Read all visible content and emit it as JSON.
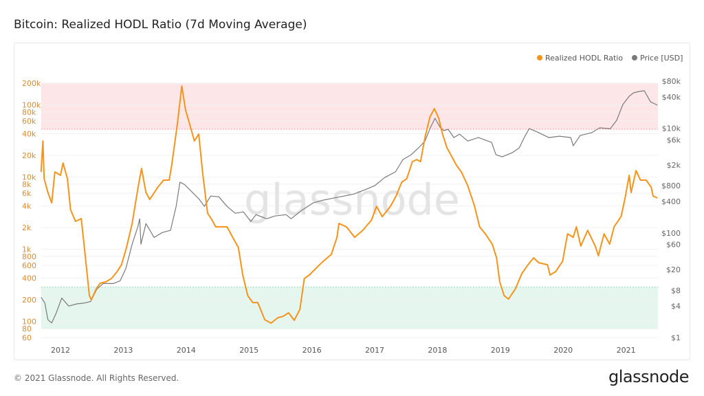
{
  "title": "Bitcoin: Realized HODL Ratio (7d Moving Average)",
  "footer": "© 2021 Glassnode. All Rights Reserved.",
  "brand": "glassnode",
  "watermark": "glassnode",
  "chart_data": {
    "type": "line",
    "title": "Bitcoin: Realized HODL Ratio (7d Moving Average)",
    "legend_position": "top-right",
    "grid": true,
    "x_ticks": [
      "2012",
      "2013",
      "2014",
      "2015",
      "2016",
      "2017",
      "2018",
      "2019",
      "2020",
      "2021"
    ],
    "xlim": [
      2011.69,
      2021.5
    ],
    "y_left": {
      "scale": "log",
      "ylim": [
        60,
        200000
      ],
      "color": "#d98c3a",
      "ticks": [
        [
          200000,
          "200k"
        ],
        [
          100000,
          "100k"
        ],
        [
          80000,
          "80k"
        ],
        [
          60000,
          "60k"
        ],
        [
          40000,
          "40k"
        ],
        [
          20000,
          "20k"
        ],
        [
          10000,
          "10k"
        ],
        [
          8000,
          "8k"
        ],
        [
          6000,
          "6k"
        ],
        [
          4000,
          "4k"
        ],
        [
          2000,
          "2k"
        ],
        [
          1000,
          "1k"
        ],
        [
          800,
          "800"
        ],
        [
          600,
          "600"
        ],
        [
          400,
          "400"
        ],
        [
          200,
          "200"
        ],
        [
          100,
          "100"
        ],
        [
          80,
          "80"
        ],
        [
          60,
          "60"
        ]
      ]
    },
    "y_right": {
      "scale": "log",
      "ylim": [
        1,
        80000
      ],
      "color": "#666666",
      "ticks": [
        [
          80000,
          "$80k"
        ],
        [
          40000,
          "$40k"
        ],
        [
          10000,
          "$10k"
        ],
        [
          6000,
          "$6k"
        ],
        [
          2000,
          "$2k"
        ],
        [
          800,
          "$800"
        ],
        [
          400,
          "$400"
        ],
        [
          100,
          "$100"
        ],
        [
          60,
          "$60"
        ],
        [
          20,
          "$20"
        ],
        [
          8,
          "$8"
        ],
        [
          4,
          "$4"
        ],
        [
          1,
          "$1"
        ]
      ]
    },
    "bands": [
      {
        "zone": "upper",
        "range": [
          46000,
          200000
        ],
        "color": "#fde6e7",
        "line": "#f08a8a"
      },
      {
        "zone": "lower",
        "range": [
          80,
          300
        ],
        "color": "#e5f6ee",
        "line": "#7fd1a8"
      }
    ],
    "series": [
      {
        "name": "Realized HODL Ratio",
        "axis": "left",
        "color": "#f7931a",
        "points": [
          [
            2011.69,
            11800
          ],
          [
            2011.72,
            31700
          ],
          [
            2011.74,
            9500
          ],
          [
            2011.8,
            6120
          ],
          [
            2011.86,
            4400
          ],
          [
            2011.91,
            11800
          ],
          [
            2012.0,
            10600
          ],
          [
            2012.04,
            15700
          ],
          [
            2012.11,
            9500
          ],
          [
            2012.16,
            3540
          ],
          [
            2012.24,
            2440
          ],
          [
            2012.33,
            2660
          ],
          [
            2012.38,
            1060
          ],
          [
            2012.46,
            228
          ],
          [
            2012.49,
            200
          ],
          [
            2012.57,
            284
          ],
          [
            2012.63,
            339
          ],
          [
            2012.72,
            354
          ],
          [
            2012.81,
            394
          ],
          [
            2012.9,
            491
          ],
          [
            2012.97,
            612
          ],
          [
            2013.05,
            1060
          ],
          [
            2013.14,
            2280
          ],
          [
            2013.23,
            6820
          ],
          [
            2013.29,
            13200
          ],
          [
            2013.36,
            6120
          ],
          [
            2013.42,
            4910
          ],
          [
            2013.55,
            7290
          ],
          [
            2013.64,
            9080
          ],
          [
            2013.73,
            9080
          ],
          [
            2013.77,
            14700
          ],
          [
            2013.86,
            54800
          ],
          [
            2013.93,
            183000
          ],
          [
            2013.99,
            85100
          ],
          [
            2014.07,
            49100
          ],
          [
            2014.13,
            31700
          ],
          [
            2014.2,
            39400
          ],
          [
            2014.26,
            11800
          ],
          [
            2014.34,
            3170
          ],
          [
            2014.41,
            2550
          ],
          [
            2014.47,
            2050
          ],
          [
            2014.56,
            2050
          ],
          [
            2014.65,
            2050
          ],
          [
            2014.74,
            1470
          ],
          [
            2014.83,
            1060
          ],
          [
            2014.9,
            441
          ],
          [
            2014.98,
            228
          ],
          [
            2015.06,
            183
          ],
          [
            2015.14,
            183
          ],
          [
            2015.25,
            106
          ],
          [
            2015.35,
            95
          ],
          [
            2015.46,
            113
          ],
          [
            2015.54,
            118
          ],
          [
            2015.63,
            132
          ],
          [
            2015.72,
            104
          ],
          [
            2015.81,
            147
          ],
          [
            2015.88,
            394
          ],
          [
            2015.96,
            441
          ],
          [
            2016.09,
            573
          ],
          [
            2016.18,
            682
          ],
          [
            2016.31,
            851
          ],
          [
            2016.4,
            1470
          ],
          [
            2016.43,
            2280
          ],
          [
            2016.55,
            2050
          ],
          [
            2016.68,
            1470
          ],
          [
            2016.81,
            1830
          ],
          [
            2016.95,
            2550
          ],
          [
            2017.03,
            3940
          ],
          [
            2017.12,
            2840
          ],
          [
            2017.25,
            3940
          ],
          [
            2017.34,
            5480
          ],
          [
            2017.43,
            8510
          ],
          [
            2017.51,
            9500
          ],
          [
            2017.6,
            16400
          ],
          [
            2017.67,
            17500
          ],
          [
            2017.73,
            16400
          ],
          [
            2017.8,
            35400
          ],
          [
            2017.88,
            68200
          ],
          [
            2017.95,
            88900
          ],
          [
            2018.02,
            65300
          ],
          [
            2018.08,
            39400
          ],
          [
            2018.15,
            25500
          ],
          [
            2018.21,
            20500
          ],
          [
            2018.3,
            14700
          ],
          [
            2018.38,
            11800
          ],
          [
            2018.48,
            7620
          ],
          [
            2018.59,
            3940
          ],
          [
            2018.67,
            2050
          ],
          [
            2018.76,
            1640
          ],
          [
            2018.87,
            1180
          ],
          [
            2018.94,
            762
          ],
          [
            2018.99,
            354
          ],
          [
            2019.06,
            228
          ],
          [
            2019.13,
            205
          ],
          [
            2019.24,
            284
          ],
          [
            2019.34,
            460
          ],
          [
            2019.44,
            612
          ],
          [
            2019.53,
            762
          ],
          [
            2019.61,
            653
          ],
          [
            2019.75,
            612
          ],
          [
            2019.79,
            441
          ],
          [
            2019.88,
            491
          ],
          [
            2019.99,
            682
          ],
          [
            2020.07,
            1640
          ],
          [
            2020.16,
            1470
          ],
          [
            2020.21,
            2050
          ],
          [
            2020.28,
            1110
          ],
          [
            2020.39,
            1830
          ],
          [
            2020.51,
            1110
          ],
          [
            2020.56,
            815
          ],
          [
            2020.65,
            1640
          ],
          [
            2020.74,
            1180
          ],
          [
            2020.81,
            2050
          ],
          [
            2020.92,
            2840
          ],
          [
            2020.98,
            4910
          ],
          [
            2021.05,
            10600
          ],
          [
            2021.08,
            6120
          ],
          [
            2021.16,
            12300
          ],
          [
            2021.23,
            9080
          ],
          [
            2021.32,
            9080
          ],
          [
            2021.4,
            7290
          ],
          [
            2021.43,
            5480
          ],
          [
            2021.5,
            5140
          ]
        ]
      },
      {
        "name": "Price [USD]",
        "axis": "right",
        "color": "#7a7a7a",
        "points": [
          [
            2011.69,
            5.9
          ],
          [
            2011.75,
            4.6
          ],
          [
            2011.8,
            2.2
          ],
          [
            2011.86,
            1.9
          ],
          [
            2011.93,
            2.9
          ],
          [
            2012.02,
            5.7
          ],
          [
            2012.13,
            4.0
          ],
          [
            2012.26,
            4.4
          ],
          [
            2012.39,
            4.6
          ],
          [
            2012.48,
            4.9
          ],
          [
            2012.58,
            8.5
          ],
          [
            2012.68,
            10.8
          ],
          [
            2012.84,
            10.8
          ],
          [
            2012.95,
            12.2
          ],
          [
            2013.04,
            21
          ],
          [
            2013.14,
            61
          ],
          [
            2013.23,
            130
          ],
          [
            2013.26,
            187
          ],
          [
            2013.28,
            61
          ],
          [
            2013.36,
            151
          ],
          [
            2013.49,
            82
          ],
          [
            2013.62,
            102
          ],
          [
            2013.75,
            112
          ],
          [
            2013.84,
            322
          ],
          [
            2013.9,
            931
          ],
          [
            2013.97,
            849
          ],
          [
            2014.08,
            628
          ],
          [
            2014.21,
            437
          ],
          [
            2014.29,
            322
          ],
          [
            2014.39,
            508
          ],
          [
            2014.52,
            492
          ],
          [
            2014.65,
            322
          ],
          [
            2014.78,
            238
          ],
          [
            2014.91,
            253
          ],
          [
            2015.03,
            166
          ],
          [
            2015.11,
            224
          ],
          [
            2015.28,
            187
          ],
          [
            2015.41,
            211
          ],
          [
            2015.59,
            224
          ],
          [
            2015.67,
            187
          ],
          [
            2015.85,
            277
          ],
          [
            2016.02,
            375
          ],
          [
            2016.18,
            424
          ],
          [
            2016.34,
            463
          ],
          [
            2016.51,
            508
          ],
          [
            2016.67,
            556
          ],
          [
            2016.84,
            667
          ],
          [
            2017.0,
            800
          ],
          [
            2017.16,
            1150
          ],
          [
            2017.33,
            1470
          ],
          [
            2017.45,
            2530
          ],
          [
            2017.58,
            3130
          ],
          [
            2017.71,
            4370
          ],
          [
            2017.8,
            5730
          ],
          [
            2017.89,
            10500
          ],
          [
            2017.96,
            15600
          ],
          [
            2018.04,
            10500
          ],
          [
            2018.1,
            9040
          ],
          [
            2018.17,
            9590
          ],
          [
            2018.26,
            6670
          ],
          [
            2018.35,
            7760
          ],
          [
            2018.48,
            5730
          ],
          [
            2018.65,
            6670
          ],
          [
            2018.86,
            5400
          ],
          [
            2018.93,
            3130
          ],
          [
            2019.03,
            2860
          ],
          [
            2019.19,
            3430
          ],
          [
            2019.3,
            4240
          ],
          [
            2019.38,
            6670
          ],
          [
            2019.46,
            9890
          ],
          [
            2019.59,
            8490
          ],
          [
            2019.77,
            6670
          ],
          [
            2019.94,
            7080
          ],
          [
            2020.12,
            6670
          ],
          [
            2020.16,
            4630
          ],
          [
            2020.27,
            7310
          ],
          [
            2020.45,
            8240
          ],
          [
            2020.58,
            10200
          ],
          [
            2020.75,
            9890
          ],
          [
            2020.85,
            14200
          ],
          [
            2020.95,
            28600
          ],
          [
            2021.05,
            41100
          ],
          [
            2021.12,
            47800
          ],
          [
            2021.21,
            50800
          ],
          [
            2021.29,
            52400
          ],
          [
            2021.39,
            32200
          ],
          [
            2021.5,
            27700
          ]
        ]
      }
    ]
  }
}
